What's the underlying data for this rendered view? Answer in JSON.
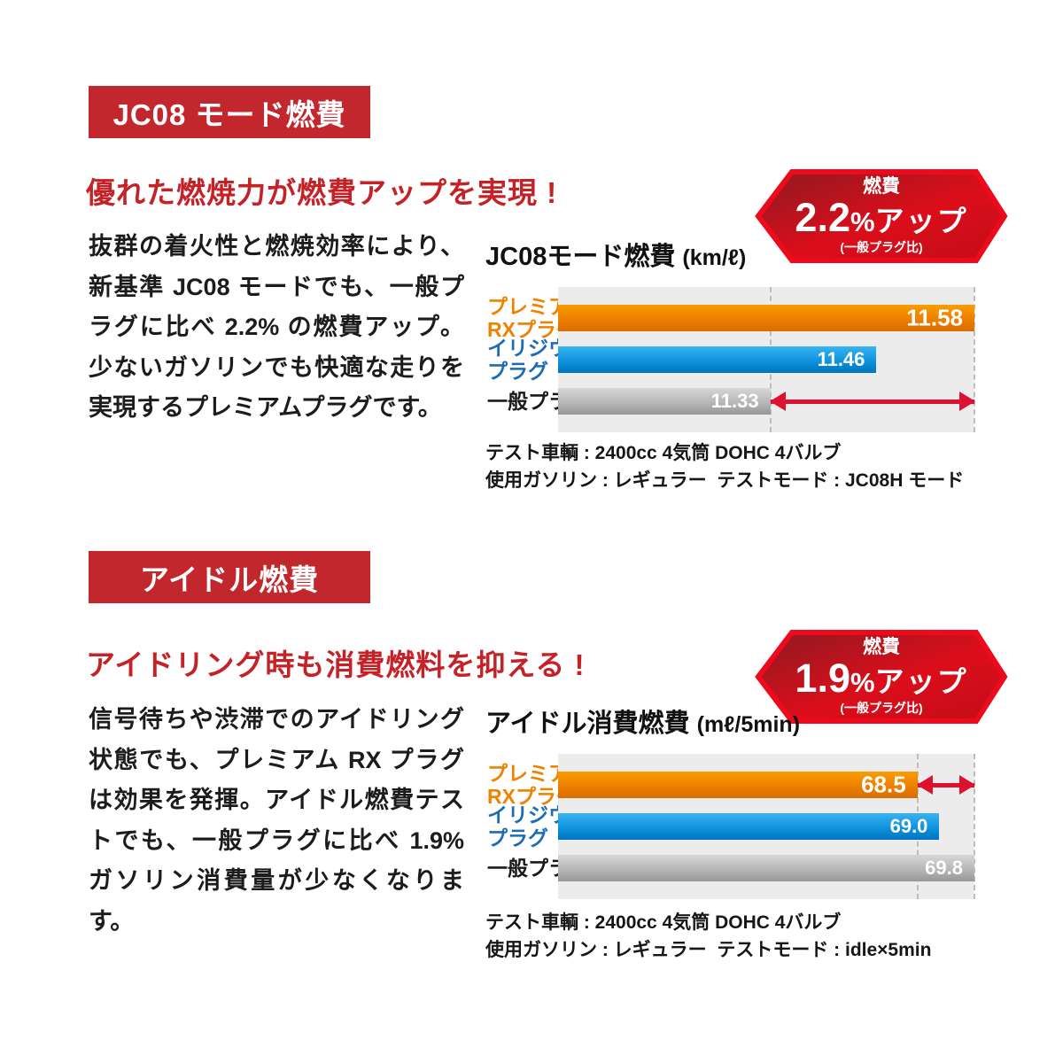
{
  "sections": [
    {
      "tag": "JC08 モード燃費",
      "heading": "優れた燃焼力が燃費アップを実現 !",
      "body": "抜群の着火性と燃焼効率により、新基準 JC08 モードでも、一般プラグに比べ 2.2% の燃費アップ。少ないガソリンでも快適な走りを実現するプレミアムプラグです。",
      "hex_badge": {
        "label": "燃費",
        "value": "2.2",
        "unit": "%",
        "suffix": "アップ",
        "note": "(一般プラグ比)"
      },
      "chart_title": "JC08モード燃費",
      "chart_unit": "(km/ℓ)",
      "notes": "テスト車輌 : 2400cc 4気筒 DOHC 4バルブ\n使用ガソリン : レギュラー  テストモード : JC08H モード"
    },
    {
      "tag": "アイドル燃費",
      "heading": "アイドリング時も消費燃料を抑える !",
      "body": "信号待ちや渋滞でのアイドリング状態でも、プレミアム RX プラグは効果を発揮。アイドル燃費テストでも、一般プラグに比べ 1.9% ガソリン消費量が少なくなります。",
      "hex_badge": {
        "label": "燃費",
        "value": "1.9",
        "unit": "%",
        "suffix": "アップ",
        "note": "(一般プラグ比)"
      },
      "chart_title": "アイドル消費燃費",
      "chart_unit": "(mℓ/5min)",
      "notes": "テスト車輌 : 2400cc 4気筒 DOHC 4バルブ\n使用ガソリン : レギュラー  テストモード : idle×5min"
    }
  ],
  "chart_data": [
    {
      "type": "bar",
      "orientation": "horizontal",
      "title": "JC08モード燃費 (km/ℓ)",
      "categories": [
        [
          "プレミアム",
          "RXプラグ"
        ],
        [
          "イリジウム",
          "プラグ"
        ],
        [
          "一般プラグ"
        ]
      ],
      "series_names": [
        "プレミアムRXプラグ",
        "イリジウムプラグ",
        "一般プラグ"
      ],
      "values": [
        11.58,
        11.46,
        11.33
      ],
      "value_labels": [
        "11.58",
        "11.46",
        "11.33"
      ],
      "series_colors": [
        "orange",
        "blue",
        "gray"
      ],
      "xlim": [
        11.07,
        11.58
      ],
      "grid": false,
      "legend": "none",
      "dashed_guides": [
        11.33,
        11.58
      ],
      "diff_arrow": {
        "from": 11.33,
        "to": 11.58,
        "at_row": 2
      }
    },
    {
      "type": "bar",
      "orientation": "horizontal",
      "title": "アイドル消費燃費 (mℓ/5min)",
      "categories": [
        [
          "プレミアム",
          "RXプラグ"
        ],
        [
          "イリジウム",
          "プラグ"
        ],
        [
          "一般プラグ"
        ]
      ],
      "series_names": [
        "プレミアムRXプラグ",
        "イリジウムプラグ",
        "一般プラグ"
      ],
      "values": [
        68.5,
        69.0,
        69.8
      ],
      "value_labels": [
        "68.5",
        "69.0",
        "69.8"
      ],
      "series_colors": [
        "orange",
        "blue",
        "gray"
      ],
      "xlim": [
        60.3,
        69.8
      ],
      "grid": false,
      "legend": "none",
      "dashed_guides": [
        68.5,
        69.8
      ],
      "diff_arrow": {
        "from": 68.5,
        "to": 69.8,
        "at_row": 0
      }
    }
  ],
  "colors": {
    "section_tag_bg": "#c2272d",
    "heading_red": "#c52228",
    "hex_border": "#ee0a1a",
    "orange_bar": "#ee7f00",
    "blue_bar": "#0f93dd",
    "gray_bar": "#b7b7b7",
    "orange_label": "#ef8200",
    "blue_label": "#1b6cb5",
    "arrow_red": "#df1130",
    "plot_bg": "#ececec"
  }
}
